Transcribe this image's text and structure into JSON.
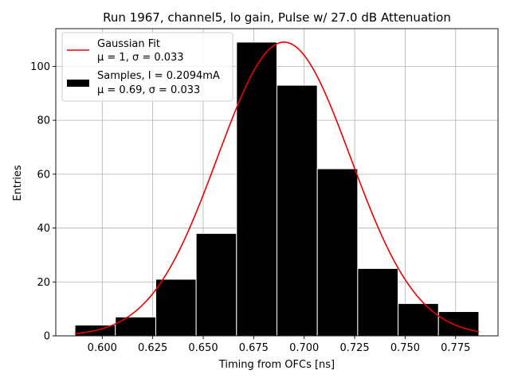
{
  "chart_data": {
    "type": "bar",
    "title": "Run 1967, channel5, lo gain, Pulse w/ 27.0 dB Attenuation",
    "xlabel": "Timing from OFCs [ns]",
    "ylabel": "Entries",
    "xlim": [
      0.577,
      0.796
    ],
    "ylim": [
      0,
      114
    ],
    "grid": true,
    "legend_position": "upper-left",
    "x_ticks": [
      "0.600",
      "0.625",
      "0.650",
      "0.675",
      "0.700",
      "0.725",
      "0.750",
      "0.775"
    ],
    "x_tick_values": [
      0.6,
      0.625,
      0.65,
      0.675,
      0.7,
      0.725,
      0.75,
      0.775
    ],
    "y_ticks": [
      "0",
      "20",
      "40",
      "60",
      "80",
      "100"
    ],
    "y_tick_values": [
      0,
      20,
      40,
      60,
      80,
      100
    ],
    "histogram": {
      "name": "Samples",
      "bin_edges": [
        0.5865,
        0.6065,
        0.6265,
        0.6465,
        0.6665,
        0.6865,
        0.7065,
        0.7265,
        0.7465,
        0.7665,
        0.7865
      ],
      "counts": [
        4,
        7,
        21,
        38,
        109,
        93,
        62,
        25,
        12,
        9
      ],
      "color": "#000000",
      "edge_color": "#ffffff"
    },
    "gaussian_fit": {
      "name": "Gaussian Fit",
      "amplitude": 109,
      "mean": 0.69,
      "sigma": 0.033,
      "x_range": [
        0.5865,
        0.7865
      ],
      "color": "#ee0000"
    },
    "legend": [
      {
        "label_line1": "Gaussian Fit",
        "label_line2": "μ = 1, σ = 0.033",
        "marker": "line",
        "color": "#ee0000"
      },
      {
        "label_line1": "Samples, I = 0.2094mA",
        "label_line2": "μ = 0.69, σ = 0.033",
        "marker": "patch",
        "color": "#000000"
      }
    ]
  }
}
